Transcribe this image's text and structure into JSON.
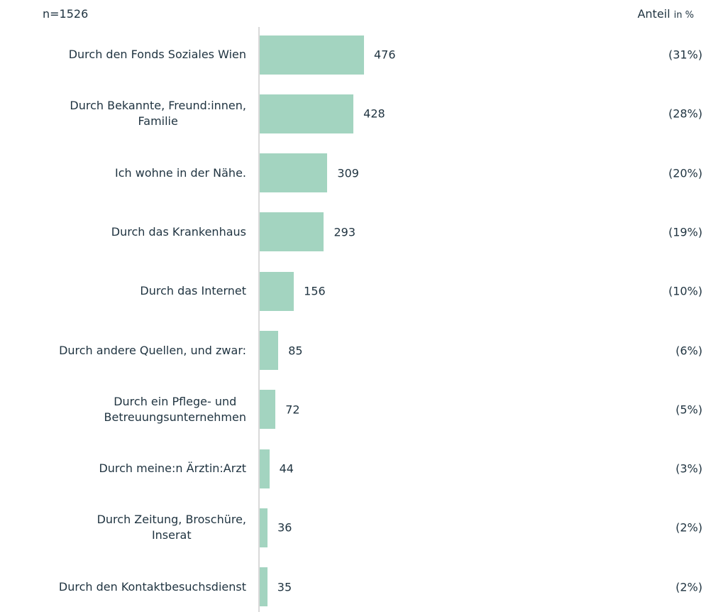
{
  "chart_data": {
    "type": "bar",
    "orientation": "horizontal",
    "note": "n=1526",
    "share_header": "Anteil",
    "share_unit": "in %",
    "categories": [
      "Durch den Fonds Soziales Wien",
      "Durch Bekannte, Freund:innen,\nFamilie",
      "Ich wohne in der Nähe.",
      "Durch das Krankenhaus",
      "Durch das Internet",
      "Durch andere Quellen, und zwar:",
      "Durch ein Pflege- und\nBetreuungsunternehmen",
      "Durch meine:n Ärztin:Arzt",
      "Durch Zeitung, Broschüre,\nInserat",
      "Durch den Kontaktbesuchsdienst"
    ],
    "series": [
      {
        "color": "#a3d4c0",
        "values": [
          476,
          428,
          309,
          293,
          156,
          85,
          72,
          44,
          36,
          35
        ]
      }
    ],
    "shares": {
      "values": [
        31,
        28,
        20,
        19,
        10,
        6,
        5,
        3,
        2,
        2
      ],
      "value_labels": [
        "(31%)",
        "(28%)",
        "(20%)",
        "(19%)",
        "(10%)",
        "(6%)",
        "(5%)",
        "(3%)",
        "(2%)",
        "(2%)"
      ]
    }
  }
}
